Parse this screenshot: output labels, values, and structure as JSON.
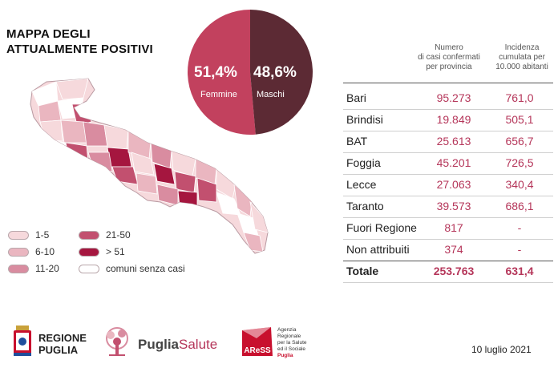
{
  "title": {
    "line1": "MAPPA DEGLI",
    "line2": "ATTUALMENTE POSITIVI"
  },
  "pie": {
    "female_pct": "51,4%",
    "female_label": "Femmine",
    "male_pct": "48,6%",
    "male_label": "Maschi",
    "female_value": 51.4,
    "male_value": 48.6,
    "female_color": "#c2415e",
    "male_color": "#5c2a34"
  },
  "legend": {
    "items": [
      {
        "label": "1-5",
        "color": "#f6d9dc"
      },
      {
        "label": "6-10",
        "color": "#eab6c0"
      },
      {
        "label": "11-20",
        "color": "#d98ca0"
      },
      {
        "label": "21-50",
        "color": "#c2506f"
      },
      {
        "label": "> 51",
        "color": "#a5163f"
      },
      {
        "label": "comuni senza casi",
        "color": "#ffffff"
      }
    ]
  },
  "table": {
    "header_cases": [
      "Numero",
      "di casi confermati",
      "per provincia"
    ],
    "header_incidence": [
      "Incidenza",
      "cumulata per",
      "10.000 abitanti"
    ],
    "rows": [
      {
        "name": "Bari",
        "cases": "95.273",
        "incidence": "761,0"
      },
      {
        "name": "Brindisi",
        "cases": "19.849",
        "incidence": "505,1"
      },
      {
        "name": "BAT",
        "cases": "25.613",
        "incidence": "656,7"
      },
      {
        "name": "Foggia",
        "cases": "45.201",
        "incidence": "726,5"
      },
      {
        "name": "Lecce",
        "cases": "27.063",
        "incidence": "340,4"
      },
      {
        "name": "Taranto",
        "cases": "39.573",
        "incidence": "686,1"
      },
      {
        "name": "Fuori Regione",
        "cases": "817",
        "incidence": "-"
      },
      {
        "name": "Non attribuiti",
        "cases": "374",
        "incidence": "-"
      }
    ],
    "total": {
      "name": "Totale",
      "cases": "253.763",
      "incidence": "631,4"
    }
  },
  "footer": {
    "regione": [
      "REGIONE",
      "PUGLIA"
    ],
    "puglia_salute": {
      "part1": "Puglia",
      "part2": "Salute"
    },
    "aress_logo": "AReSS",
    "aress_text": [
      "Agenzia",
      "Regionale",
      "per la Salute",
      "ed il Sociale",
      "Puglia"
    ],
    "date": "10 luglio 2021"
  }
}
